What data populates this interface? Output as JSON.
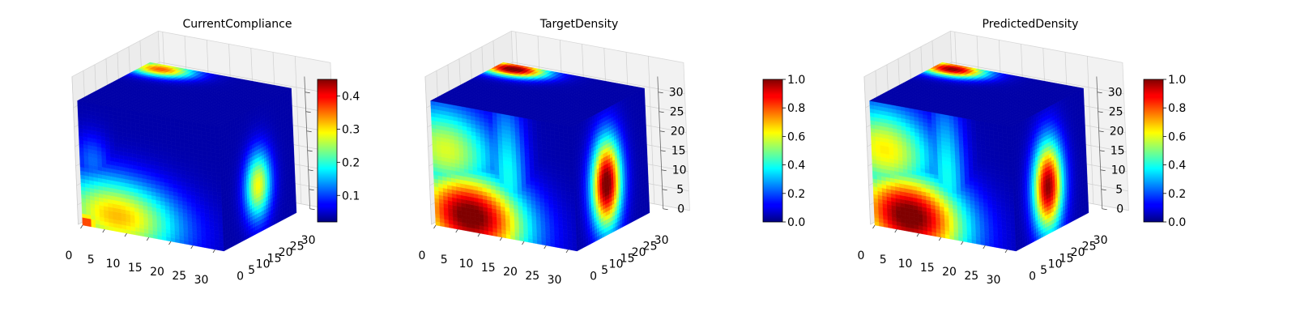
{
  "chart_data": [
    {
      "type": "heatmap",
      "title": "CurrentCompliance",
      "x_ticks": [
        "0",
        "5",
        "10",
        "15",
        "20",
        "25",
        "30"
      ],
      "y_ticks": [
        "0",
        "5",
        "10",
        "15",
        "20",
        "25",
        "30"
      ],
      "z_ticks": [],
      "grid_size": 32,
      "colormap": "jet",
      "colorbar": {
        "min": 0.02,
        "max": 0.45,
        "ticks": [
          0.1,
          0.2,
          0.3,
          0.4
        ],
        "tick_labels": [
          "0.1",
          "0.2",
          "0.3",
          "0.4"
        ]
      },
      "front_blobs": [
        {
          "x": 8,
          "z": 4,
          "sx": 10,
          "sz": 7,
          "v": 0.28
        },
        {
          "x": 1,
          "z": 1,
          "sx": 2,
          "sz": 2,
          "v": 0.35
        },
        {
          "x": 3,
          "z": 17,
          "sx": 3,
          "sz": 5,
          "v": 0.08
        }
      ],
      "top_blobs": [
        {
          "x": 4,
          "y": 29,
          "sx": 5,
          "sy": 3.5,
          "v": 0.32
        }
      ],
      "side_blobs": [
        {
          "y": 16,
          "z": 12,
          "sy": 4,
          "sz": 6,
          "v": 0.25
        }
      ]
    },
    {
      "type": "heatmap",
      "title": "TargetDensity",
      "x_ticks": [
        "0",
        "5",
        "10",
        "15",
        "20",
        "25",
        "30"
      ],
      "y_ticks": [
        "0",
        "5",
        "10",
        "15",
        "20",
        "25",
        "30"
      ],
      "z_ticks": [
        "0",
        "5",
        "10",
        "15",
        "20",
        "25",
        "30"
      ],
      "grid_size": 32,
      "colormap": "jet",
      "colorbar": {
        "min": 0.0,
        "max": 1.0,
        "ticks": [
          0.0,
          0.2,
          0.4,
          0.6,
          0.8,
          1.0
        ],
        "tick_labels": [
          "0.0",
          "0.2",
          "0.4",
          "0.6",
          "0.8",
          "1.0"
        ]
      },
      "front_blobs": [
        {
          "x": 8,
          "z": 4,
          "sx": 9,
          "sz": 8,
          "v": 1.0
        },
        {
          "x": 3,
          "z": 20,
          "sx": 8,
          "sz": 8,
          "v": 0.55
        },
        {
          "x": 17,
          "z": 16,
          "sx": 3,
          "sz": 14,
          "v": 0.35
        }
      ],
      "top_blobs": [
        {
          "x": 4,
          "y": 29,
          "sx": 5,
          "sy": 3.5,
          "v": 1.0
        }
      ],
      "side_blobs": [
        {
          "y": 14,
          "z": 13,
          "sy": 4.5,
          "sz": 8,
          "v": 1.0
        }
      ]
    },
    {
      "type": "heatmap",
      "title": "PredictedDensity",
      "x_ticks": [
        "0",
        "5",
        "10",
        "15",
        "20",
        "25",
        "30"
      ],
      "y_ticks": [
        "0",
        "5",
        "10",
        "15",
        "20",
        "25",
        "30"
      ],
      "z_ticks": [
        "0",
        "5",
        "10",
        "15",
        "20",
        "25",
        "30"
      ],
      "grid_size": 32,
      "colormap": "jet",
      "colorbar": {
        "min": 0.0,
        "max": 1.0,
        "ticks": [
          0.0,
          0.2,
          0.4,
          0.6,
          0.8,
          1.0
        ],
        "tick_labels": [
          "0.0",
          "0.2",
          "0.4",
          "0.6",
          "0.8",
          "1.0"
        ]
      },
      "front_blobs": [
        {
          "x": 8,
          "z": 4,
          "sx": 9,
          "sz": 8,
          "v": 1.0
        },
        {
          "x": 3,
          "z": 20,
          "sx": 8,
          "sz": 8,
          "v": 0.6
        },
        {
          "x": 17,
          "z": 16,
          "sx": 3,
          "sz": 14,
          "v": 0.35
        }
      ],
      "top_blobs": [
        {
          "x": 4,
          "y": 29,
          "sx": 5,
          "sy": 3.5,
          "v": 0.95
        }
      ],
      "side_blobs": [
        {
          "y": 15,
          "z": 12,
          "sy": 4.5,
          "sz": 8,
          "v": 0.95
        }
      ]
    }
  ]
}
